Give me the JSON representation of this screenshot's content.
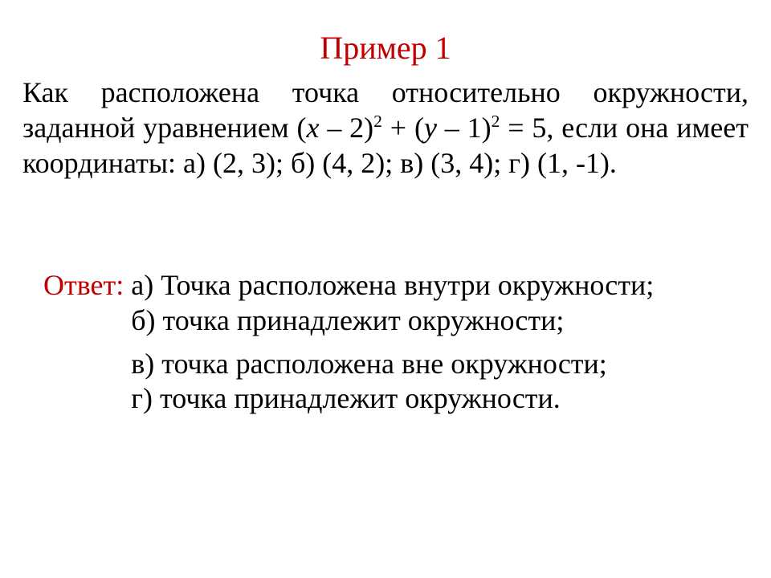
{
  "colors": {
    "accent": "#c00000",
    "text": "#000000",
    "background": "#ffffff"
  },
  "typography": {
    "family": "Times New Roman",
    "title_fontsize": 40,
    "body_fontsize": 36
  },
  "title": "Пример 1",
  "problem": {
    "prefix": "Как расположена точка относительно окружности, заданной уравнением (",
    "var_x": "x",
    "mid1": " – 2)",
    "exp1": "2",
    "mid2": " + (",
    "var_y": "y",
    "mid3": " – 1)",
    "exp2": "2",
    "suffix": " = 5, если она имеет координаты: а) (2, 3); б) (4, 2); в) (3, 4); г) (1, -1)."
  },
  "answer_label": "Ответ: ",
  "answers": {
    "a": "а) Точка расположена внутри окружности;",
    "b": "б) точка принадлежит окружности;",
    "c": "в) точка расположена вне окружности;",
    "d": "г) точка принадлежит окружности."
  }
}
